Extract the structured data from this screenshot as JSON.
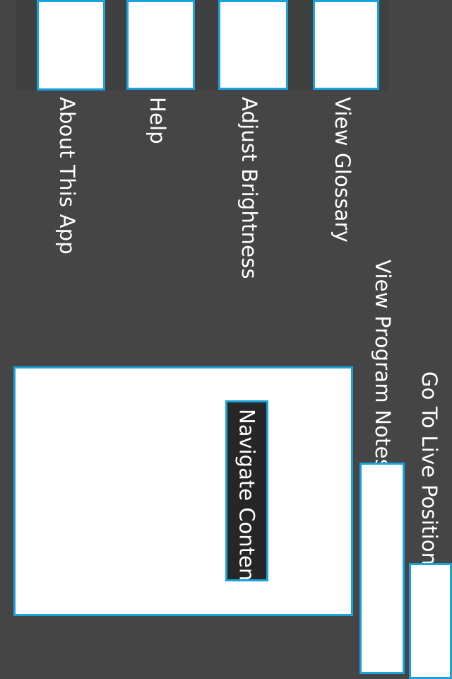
{
  "menu": {
    "items": [
      {
        "label": "About This App"
      },
      {
        "label": "Help"
      },
      {
        "label": "Adjust Brightness"
      },
      {
        "label": "View Glossary"
      }
    ]
  },
  "side_actions": {
    "program_notes_label": "View Program Notes",
    "live_position_label": "Go To Live Position"
  },
  "content": {
    "navigate_label": "Navigate Content"
  },
  "colors": {
    "background": "#454545",
    "accent": "#1aa2dc",
    "panel": "#ffffff",
    "chip": "#262626"
  }
}
